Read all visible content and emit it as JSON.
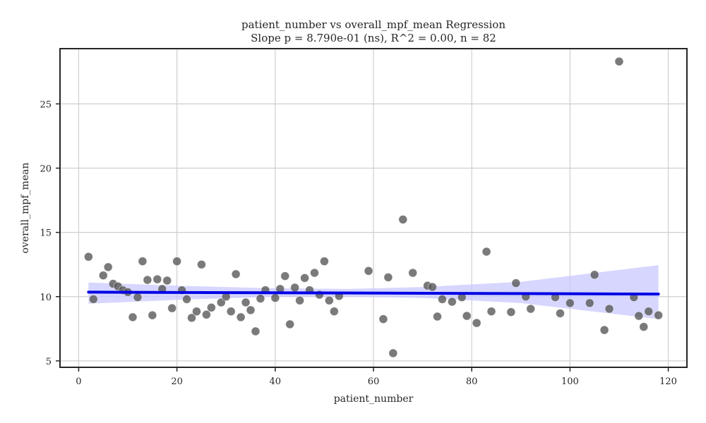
{
  "chart_data": {
    "type": "scatter",
    "title": "patient_number vs overall_mpf_mean Regression",
    "subtitle": "Slope p = 8.790e-01 (ns), R^2 = 0.00, n = 82",
    "xlabel": "patient_number",
    "ylabel": "overall_mpf_mean",
    "xlim": [
      -3.8,
      123.8
    ],
    "ylim": [
      4.5,
      29.3
    ],
    "x_ticks": [
      0,
      20,
      40,
      60,
      80,
      100,
      120
    ],
    "y_ticks": [
      5,
      10,
      15,
      20,
      25
    ],
    "grid": true,
    "colors": {
      "points": "#555555",
      "regression_line": "#0000e6",
      "confidence_band": "#c8c8ff"
    },
    "regression": {
      "x_start": 2,
      "y_start": 10.35,
      "x_end": 118,
      "y_end": 10.2
    },
    "confidence_band": [
      {
        "x": 2,
        "lower": 9.45,
        "upper": 11.1
      },
      {
        "x": 20,
        "lower": 9.75,
        "upper": 10.85
      },
      {
        "x": 40,
        "lower": 10.0,
        "upper": 10.65
      },
      {
        "x": 55,
        "lower": 10.0,
        "upper": 10.6
      },
      {
        "x": 70,
        "lower": 9.9,
        "upper": 10.75
      },
      {
        "x": 90,
        "lower": 9.5,
        "upper": 11.15
      },
      {
        "x": 118,
        "lower": 8.25,
        "upper": 12.45
      }
    ],
    "points": [
      {
        "x": 2,
        "y": 13.1
      },
      {
        "x": 3,
        "y": 9.8
      },
      {
        "x": 5,
        "y": 11.65
      },
      {
        "x": 6,
        "y": 12.3
      },
      {
        "x": 7,
        "y": 11.0
      },
      {
        "x": 8,
        "y": 10.8
      },
      {
        "x": 9,
        "y": 10.5
      },
      {
        "x": 10,
        "y": 10.35
      },
      {
        "x": 11,
        "y": 8.4
      },
      {
        "x": 12,
        "y": 9.95
      },
      {
        "x": 13,
        "y": 12.75
      },
      {
        "x": 14,
        "y": 11.3
      },
      {
        "x": 15,
        "y": 8.55
      },
      {
        "x": 16,
        "y": 11.35
      },
      {
        "x": 17,
        "y": 10.6
      },
      {
        "x": 18,
        "y": 11.25
      },
      {
        "x": 19,
        "y": 9.1
      },
      {
        "x": 20,
        "y": 12.75
      },
      {
        "x": 21,
        "y": 10.5
      },
      {
        "x": 22,
        "y": 9.8
      },
      {
        "x": 23,
        "y": 8.35
      },
      {
        "x": 24,
        "y": 8.85
      },
      {
        "x": 25,
        "y": 12.5
      },
      {
        "x": 26,
        "y": 8.6
      },
      {
        "x": 27,
        "y": 9.15
      },
      {
        "x": 29,
        "y": 9.55
      },
      {
        "x": 30,
        "y": 10.0
      },
      {
        "x": 31,
        "y": 8.85
      },
      {
        "x": 32,
        "y": 11.75
      },
      {
        "x": 33,
        "y": 8.4
      },
      {
        "x": 34,
        "y": 9.55
      },
      {
        "x": 35,
        "y": 8.95
      },
      {
        "x": 36,
        "y": 7.3
      },
      {
        "x": 37,
        "y": 9.85
      },
      {
        "x": 38,
        "y": 10.5
      },
      {
        "x": 40,
        "y": 9.9
      },
      {
        "x": 41,
        "y": 10.6
      },
      {
        "x": 42,
        "y": 11.6
      },
      {
        "x": 43,
        "y": 7.85
      },
      {
        "x": 44,
        "y": 10.7
      },
      {
        "x": 45,
        "y": 9.7
      },
      {
        "x": 46,
        "y": 11.45
      },
      {
        "x": 47,
        "y": 10.5
      },
      {
        "x": 48,
        "y": 11.85
      },
      {
        "x": 49,
        "y": 10.15
      },
      {
        "x": 50,
        "y": 12.75
      },
      {
        "x": 51,
        "y": 9.7
      },
      {
        "x": 52,
        "y": 8.85
      },
      {
        "x": 53,
        "y": 10.05
      },
      {
        "x": 59,
        "y": 12.0
      },
      {
        "x": 62,
        "y": 8.25
      },
      {
        "x": 63,
        "y": 11.5
      },
      {
        "x": 64,
        "y": 5.6
      },
      {
        "x": 66,
        "y": 16.0
      },
      {
        "x": 68,
        "y": 11.85
      },
      {
        "x": 71,
        "y": 10.85
      },
      {
        "x": 72,
        "y": 10.75
      },
      {
        "x": 73,
        "y": 8.45
      },
      {
        "x": 74,
        "y": 9.8
      },
      {
        "x": 76,
        "y": 9.6
      },
      {
        "x": 78,
        "y": 9.95
      },
      {
        "x": 79,
        "y": 8.5
      },
      {
        "x": 81,
        "y": 7.95
      },
      {
        "x": 83,
        "y": 13.5
      },
      {
        "x": 84,
        "y": 8.85
      },
      {
        "x": 88,
        "y": 8.8
      },
      {
        "x": 89,
        "y": 11.05
      },
      {
        "x": 91,
        "y": 10.0
      },
      {
        "x": 92,
        "y": 9.05
      },
      {
        "x": 97,
        "y": 9.95
      },
      {
        "x": 98,
        "y": 8.7
      },
      {
        "x": 100,
        "y": 9.5
      },
      {
        "x": 104,
        "y": 9.5
      },
      {
        "x": 105,
        "y": 11.7
      },
      {
        "x": 107,
        "y": 7.4
      },
      {
        "x": 108,
        "y": 9.05
      },
      {
        "x": 110,
        "y": 28.3
      },
      {
        "x": 113,
        "y": 9.95
      },
      {
        "x": 114,
        "y": 8.5
      },
      {
        "x": 115,
        "y": 7.65
      },
      {
        "x": 116,
        "y": 8.85
      },
      {
        "x": 118,
        "y": 8.55
      }
    ]
  }
}
